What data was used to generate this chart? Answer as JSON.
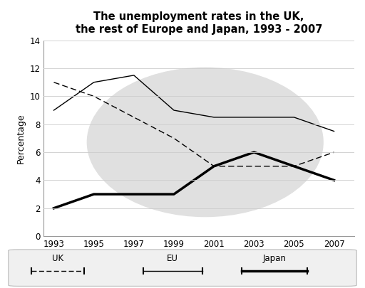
{
  "title": "The unemployment rates in the UK,\nthe rest of Europe and Japan, 1993 - 2007",
  "ylabel": "Percentage",
  "years": [
    1993,
    1995,
    1997,
    1999,
    2001,
    2003,
    2005,
    2007
  ],
  "uk": [
    11.0,
    10.0,
    8.5,
    7.0,
    5.0,
    5.0,
    5.0,
    6.0
  ],
  "eu": [
    9.0,
    11.0,
    11.5,
    9.0,
    8.5,
    8.5,
    8.5,
    7.5
  ],
  "japan": [
    2.0,
    3.0,
    3.0,
    3.0,
    5.0,
    6.0,
    5.0,
    4.0
  ],
  "ylim": [
    0,
    14
  ],
  "yticks": [
    0,
    2,
    4,
    6,
    8,
    10,
    12,
    14
  ],
  "background_color": "#ffffff",
  "watermark_color": "#e0e0e0",
  "grid_color": "#cccccc"
}
